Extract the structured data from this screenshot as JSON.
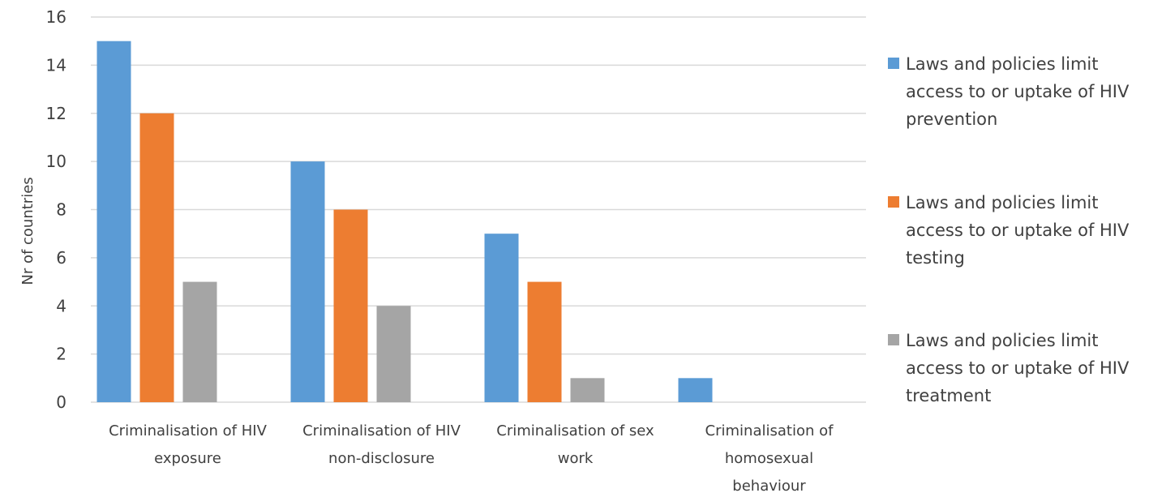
{
  "chart_data": {
    "type": "bar",
    "title": "",
    "xlabel": "",
    "ylabel": "Nr of countries",
    "ylim": [
      0,
      16
    ],
    "yticks": [
      0,
      2,
      4,
      6,
      8,
      10,
      12,
      14,
      16
    ],
    "grid": true,
    "legend_position": "right",
    "categories": [
      [
        "Criminalisation of HIV",
        "exposure"
      ],
      [
        "Criminalisation of HIV",
        "non-disclosure"
      ],
      [
        "Criminalisation of sex",
        "work"
      ],
      [
        "Criminalisation of",
        "homosexual",
        "behaviour"
      ]
    ],
    "series": [
      {
        "name": "Laws and policies limit access to or uptake of HIV prevention",
        "color": "#5b9bd5",
        "values": [
          15,
          10,
          7,
          1
        ]
      },
      {
        "name": "Laws and policies limit access to or uptake of HIV testing",
        "color": "#ed7d31",
        "values": [
          12,
          8,
          5,
          0
        ]
      },
      {
        "name": "Laws and policies limit access to or uptake of HIV treatment",
        "color": "#a5a5a5",
        "values": [
          5,
          4,
          1,
          0
        ]
      }
    ]
  }
}
